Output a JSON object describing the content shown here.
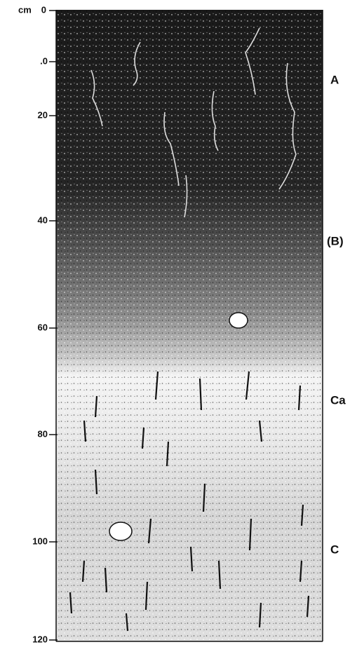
{
  "scale": {
    "unit": "cm",
    "labels": [
      "0",
      ".0",
      "20",
      "40",
      "60",
      "80",
      "100",
      "120"
    ]
  },
  "horizons": [
    {
      "label": "A"
    },
    {
      "label": "(B)"
    },
    {
      "label": "Ca"
    },
    {
      "label": "C"
    }
  ]
}
